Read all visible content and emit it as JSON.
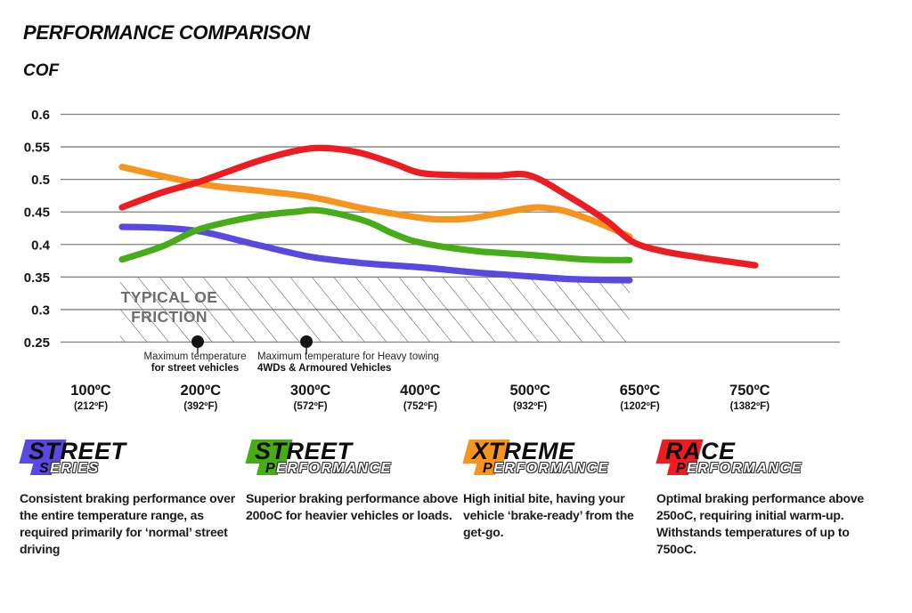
{
  "header": {
    "title": "PERFORMANCE COMPARISON",
    "ylabel": "COF"
  },
  "chart_data": {
    "type": "line",
    "title": "PERFORMANCE COMPARISON",
    "ylabel": "COF",
    "xlabel": "",
    "ylim": [
      0.25,
      0.6
    ],
    "yticks": [
      0.6,
      0.55,
      0.5,
      0.45,
      0.4,
      0.35,
      0.3,
      0.25
    ],
    "grid_color": "#7e7e7e",
    "x_categories": [
      {
        "c": "100ºC",
        "f": "(212ºF)"
      },
      {
        "c": "200ºC",
        "f": "(392ºF)"
      },
      {
        "c": "300ºC",
        "f": "(572ºF)"
      },
      {
        "c": "400ºC",
        "f": "(752ºF)"
      },
      {
        "c": "500ºC",
        "f": "(932ºF)"
      },
      {
        "c": "650ºC",
        "f": "(1202ºF)"
      },
      {
        "c": "750ºC",
        "f": "(1382ºF)"
      }
    ],
    "series": [
      {
        "name": "Street Series",
        "color": "#5a49e0",
        "values_at_ticks": [
          0.427,
          0.42,
          0.381,
          0.365,
          0.351,
          0.345,
          null
        ],
        "points": [
          [
            0.284,
            0.427
          ],
          [
            0.6,
            0.426
          ],
          [
            1,
            0.42
          ],
          [
            1.5,
            0.4
          ],
          [
            2,
            0.381
          ],
          [
            2.5,
            0.371
          ],
          [
            3,
            0.365
          ],
          [
            3.5,
            0.357
          ],
          [
            4,
            0.351
          ],
          [
            4.35,
            0.347
          ],
          [
            4.65,
            0.3455
          ],
          [
            4.906,
            0.345
          ]
        ]
      },
      {
        "name": "Street Performance",
        "color": "#46ad18",
        "values_at_ticks": [
          0.377,
          0.424,
          0.452,
          0.403,
          0.384,
          0.375,
          null
        ],
        "points": [
          [
            0.284,
            0.377
          ],
          [
            0.65,
            0.397
          ],
          [
            1,
            0.424
          ],
          [
            1.5,
            0.443
          ],
          [
            1.85,
            0.45
          ],
          [
            2.1,
            0.452
          ],
          [
            2.5,
            0.436
          ],
          [
            2.75,
            0.417
          ],
          [
            3,
            0.403
          ],
          [
            3.5,
            0.39
          ],
          [
            4,
            0.384
          ],
          [
            4.5,
            0.377
          ],
          [
            4.906,
            0.376
          ]
        ]
      },
      {
        "name": "Xtreme Performance",
        "color": "#f7941d",
        "values_at_ticks": [
          0.519,
          0.493,
          0.473,
          0.441,
          0.457,
          0.412,
          null
        ],
        "points": [
          [
            0.284,
            0.519
          ],
          [
            1,
            0.493
          ],
          [
            1.5,
            0.483
          ],
          [
            2,
            0.473
          ],
          [
            2.5,
            0.455
          ],
          [
            3,
            0.441
          ],
          [
            3.2,
            0.4385
          ],
          [
            3.45,
            0.44
          ],
          [
            3.75,
            0.449
          ],
          [
            4.05,
            0.457
          ],
          [
            4.3,
            0.452
          ],
          [
            4.55,
            0.438
          ],
          [
            4.75,
            0.424
          ],
          [
            4.906,
            0.412
          ]
        ]
      },
      {
        "name": "Race Performance",
        "color": "#ec1c22",
        "values_at_ticks": [
          0.457,
          0.497,
          0.548,
          0.51,
          0.506,
          0.398,
          0.368
        ],
        "points": [
          [
            0.284,
            0.457
          ],
          [
            0.65,
            0.48
          ],
          [
            1,
            0.497
          ],
          [
            1.5,
            0.527
          ],
          [
            1.9,
            0.545
          ],
          [
            2.15,
            0.548
          ],
          [
            2.45,
            0.541
          ],
          [
            2.75,
            0.525
          ],
          [
            3,
            0.51
          ],
          [
            3.35,
            0.5065
          ],
          [
            3.7,
            0.506
          ],
          [
            4,
            0.506
          ],
          [
            4.36,
            0.473
          ],
          [
            4.7,
            0.436
          ],
          [
            4.93,
            0.4045
          ],
          [
            5.2,
            0.39
          ],
          [
            5.55,
            0.38
          ],
          [
            6.05,
            0.368
          ]
        ]
      }
    ],
    "oe_band": {
      "label_line1": "TYPICAL OE",
      "label_line2": "FRICTION",
      "cof_range": [
        0.25,
        0.35
      ],
      "x_frac": [
        0.268,
        4.906
      ]
    },
    "annotations": [
      {
        "x_frac": 0.973,
        "line1": "Maximum temperature",
        "line2": "for street vehicles"
      },
      {
        "x_frac": 1.963,
        "line1": "Maximum temperature for Heavy towing",
        "line2": "4WDs & Armoured Vehicles"
      }
    ]
  },
  "legend": [
    {
      "cap1": "S",
      "rest1": "TREET",
      "cap2": "S",
      "rest2": "ERIES",
      "color": "#5a49e0",
      "description": "Consistent braking performance over the entire temperature range, as required primarily for ‘normal’ street driving"
    },
    {
      "cap1": "S",
      "rest1": "TREET",
      "cap2": "P",
      "rest2": "ERFORMANCE",
      "color": "#46ad18",
      "description": "Superior braking performance above 200oC for heavier vehicles or loads."
    },
    {
      "cap1": "X",
      "rest1": "TREME",
      "cap2": "P",
      "rest2": "ERFORMANCE",
      "color": "#f7941d",
      "description": "High initial bite, having your vehicle ‘brake-ready’ from the get-go."
    },
    {
      "cap1": "R",
      "rest1": "ACE",
      "cap2": "P",
      "rest2": "ERFORMANCE",
      "color": "#ec1c22",
      "description": "Optimal braking performance above 250oC, requiring initial warm-up. Withstands temperatures of up to 750oC."
    }
  ]
}
